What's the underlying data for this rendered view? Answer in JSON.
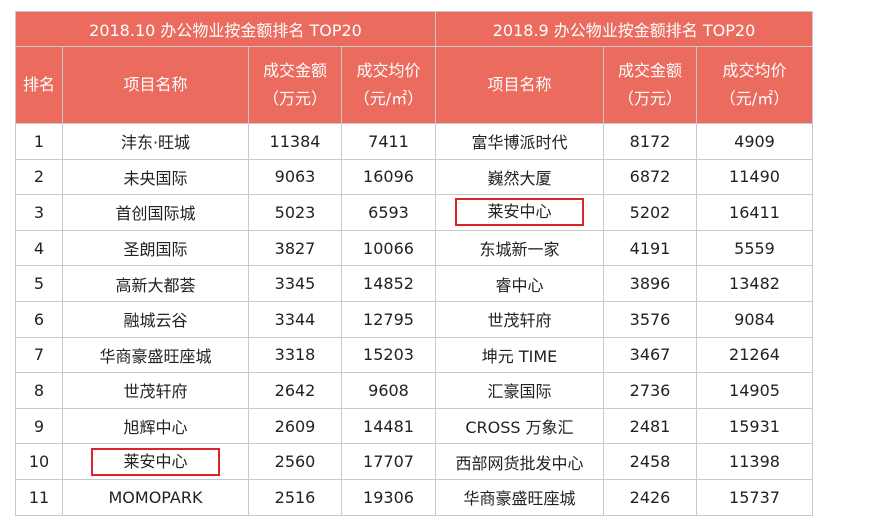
{
  "table_left": {
    "title": "2018.10 办公物业按金额排名 TOP20",
    "headers": {
      "rank": "排名",
      "name": "项目名称",
      "amount_l1": "成交金额",
      "amount_l2": "（万元）",
      "price_l1": "成交均价",
      "price_l2": "（元/㎡）"
    },
    "rows": [
      {
        "rank": "1",
        "name": "沣东·旺城",
        "amount": "11384",
        "price": "7411"
      },
      {
        "rank": "2",
        "name": "未央国际",
        "amount": "9063",
        "price": "16096"
      },
      {
        "rank": "3",
        "name": "首创国际城",
        "amount": "5023",
        "price": "6593"
      },
      {
        "rank": "4",
        "name": "圣朗国际",
        "amount": "3827",
        "price": "10066"
      },
      {
        "rank": "5",
        "name": "高新大都荟",
        "amount": "3345",
        "price": "14852"
      },
      {
        "rank": "6",
        "name": "融城云谷",
        "amount": "3344",
        "price": "12795"
      },
      {
        "rank": "7",
        "name": "华商豪盛旺座城",
        "amount": "3318",
        "price": "15203"
      },
      {
        "rank": "8",
        "name": "世茂轩府",
        "amount": "2642",
        "price": "9608"
      },
      {
        "rank": "9",
        "name": "旭辉中心",
        "amount": "2609",
        "price": "14481"
      },
      {
        "rank": "10",
        "name": "莱安中心",
        "amount": "2560",
        "price": "17707"
      },
      {
        "rank": "11",
        "name": "MOMOPARK",
        "amount": "2516",
        "price": "19306"
      }
    ]
  },
  "table_right": {
    "title": "2018.9 办公物业按金额排名 TOP20",
    "headers": {
      "name": "项目名称",
      "amount_l1": "成交金额",
      "amount_l2": "（万元）",
      "price_l1": "成交均价",
      "price_l2": "（元/㎡）"
    },
    "rows": [
      {
        "name": "富华博派时代",
        "amount": "8172",
        "price": "4909"
      },
      {
        "name": "巍然大厦",
        "amount": "6872",
        "price": "11490"
      },
      {
        "name": "莱安中心",
        "amount": "5202",
        "price": "16411"
      },
      {
        "name": "东城新一家",
        "amount": "4191",
        "price": "5559"
      },
      {
        "name": "睿中心",
        "amount": "3896",
        "price": "13482"
      },
      {
        "name": "世茂轩府",
        "amount": "3576",
        "price": "9084"
      },
      {
        "name": "坤元 TIME",
        "amount": "3467",
        "price": "21264"
      },
      {
        "name": "汇豪国际",
        "amount": "2736",
        "price": "14905"
      },
      {
        "name": "CROSS 万象汇",
        "amount": "2481",
        "price": "15931"
      },
      {
        "name": "西部网货批发中心",
        "amount": "2458",
        "price": "11398"
      },
      {
        "name": "华商豪盛旺座城",
        "amount": "2426",
        "price": "15737"
      }
    ]
  },
  "highlight_color": "#d8262c",
  "header_color": "#eb6b5f"
}
